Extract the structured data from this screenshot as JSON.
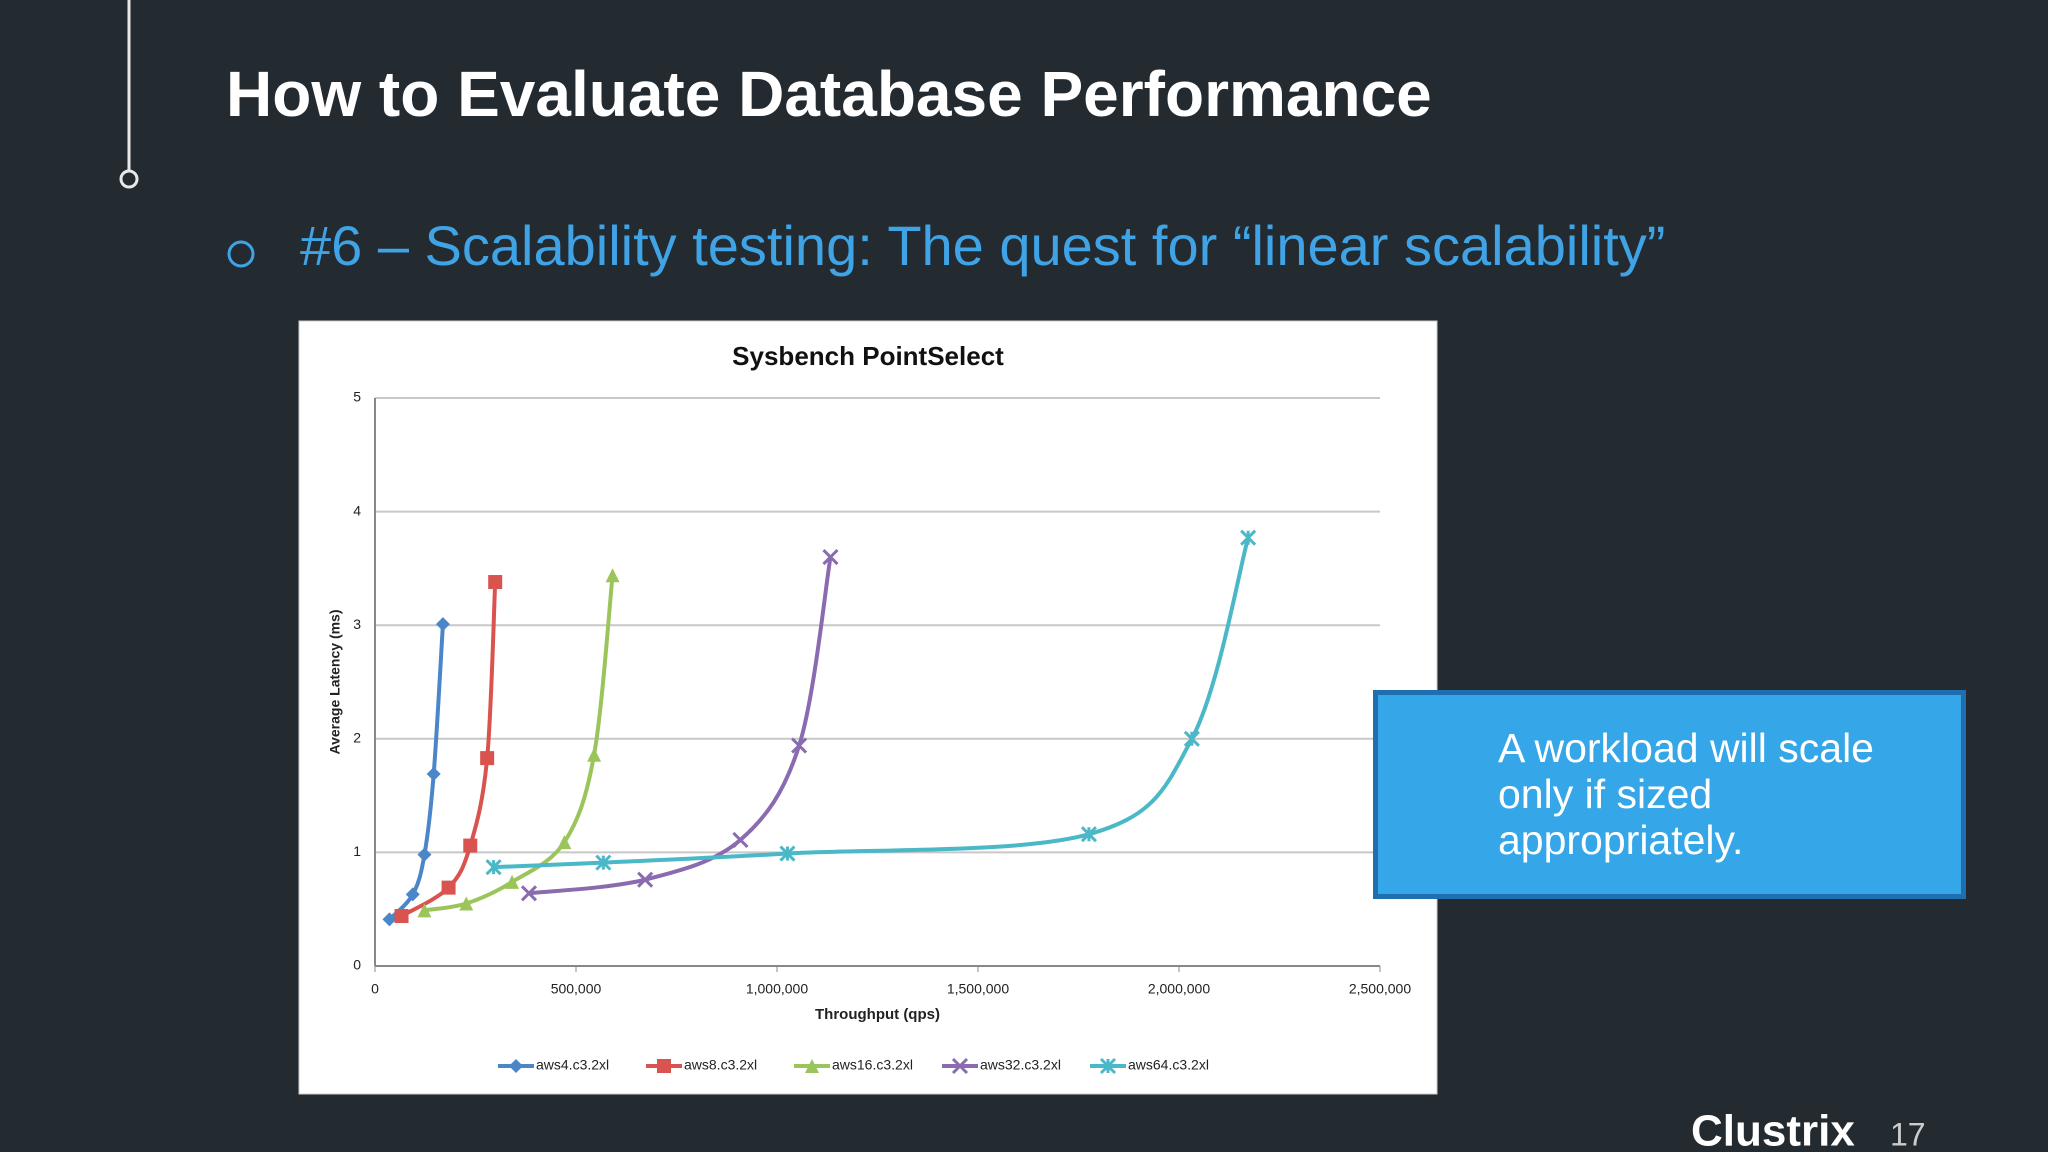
{
  "slide": {
    "title": "How to Evaluate Database Performance",
    "bullet": "#6 – Scalability testing: The quest for “linear scalability”",
    "callout": "A workload will scale only if sized appropriately.",
    "logo": "Clustrix",
    "page_number": "17"
  },
  "chart_data": {
    "type": "line",
    "title": "Sysbench PointSelect",
    "x_label": "Throughput (qps)",
    "y_label": "Average Latency (ms)",
    "xlim": [
      0,
      2500000
    ],
    "xticks": [
      0,
      {
        "value": 500000,
        "label": "500,000"
      },
      {
        "value": 1000000,
        "label": "1,000,000"
      },
      {
        "value": 1500000,
        "label": "1,500,000"
      },
      {
        "value": 2000000,
        "label": "2,000,000"
      },
      {
        "value": 2500000,
        "label": "2,500,000"
      }
    ],
    "ylim": [
      0,
      5
    ],
    "yticks": [
      0,
      1,
      2,
      3,
      4,
      5
    ],
    "grid": true,
    "legend": "bottom",
    "series": [
      {
        "name": "aws4.c3.2xl",
        "color": "#4a86c8",
        "marker": "diamond",
        "x": [
          36000,
          94000,
          123000,
          146000,
          169000
        ],
        "values": [
          0.41,
          0.63,
          0.98,
          1.69,
          3.01
        ]
      },
      {
        "name": "aws8.c3.2xl",
        "color": "#d9534f",
        "marker": "square",
        "x": [
          66000,
          183000,
          237000,
          279000,
          299000
        ],
        "values": [
          0.44,
          0.69,
          1.06,
          1.83,
          3.38
        ]
      },
      {
        "name": "aws16.c3.2xl",
        "color": "#9bc55a",
        "marker": "triangle",
        "x": [
          123000,
          227000,
          341000,
          471000,
          545000,
          591000
        ],
        "values": [
          0.49,
          0.55,
          0.74,
          1.09,
          1.86,
          3.44
        ]
      },
      {
        "name": "aws32.c3.2xl",
        "color": "#8a6bb0",
        "marker": "cross",
        "x": [
          383000,
          672000,
          909000,
          1055000,
          1133000
        ],
        "values": [
          0.64,
          0.76,
          1.11,
          1.94,
          3.6
        ]
      },
      {
        "name": "aws64.c3.2xl",
        "color": "#4bb8c8",
        "marker": "star",
        "x": [
          295000,
          568000,
          1026000,
          1776000,
          2032000,
          2172000
        ],
        "values": [
          0.87,
          0.91,
          0.99,
          1.16,
          2.0,
          3.77
        ]
      }
    ]
  }
}
